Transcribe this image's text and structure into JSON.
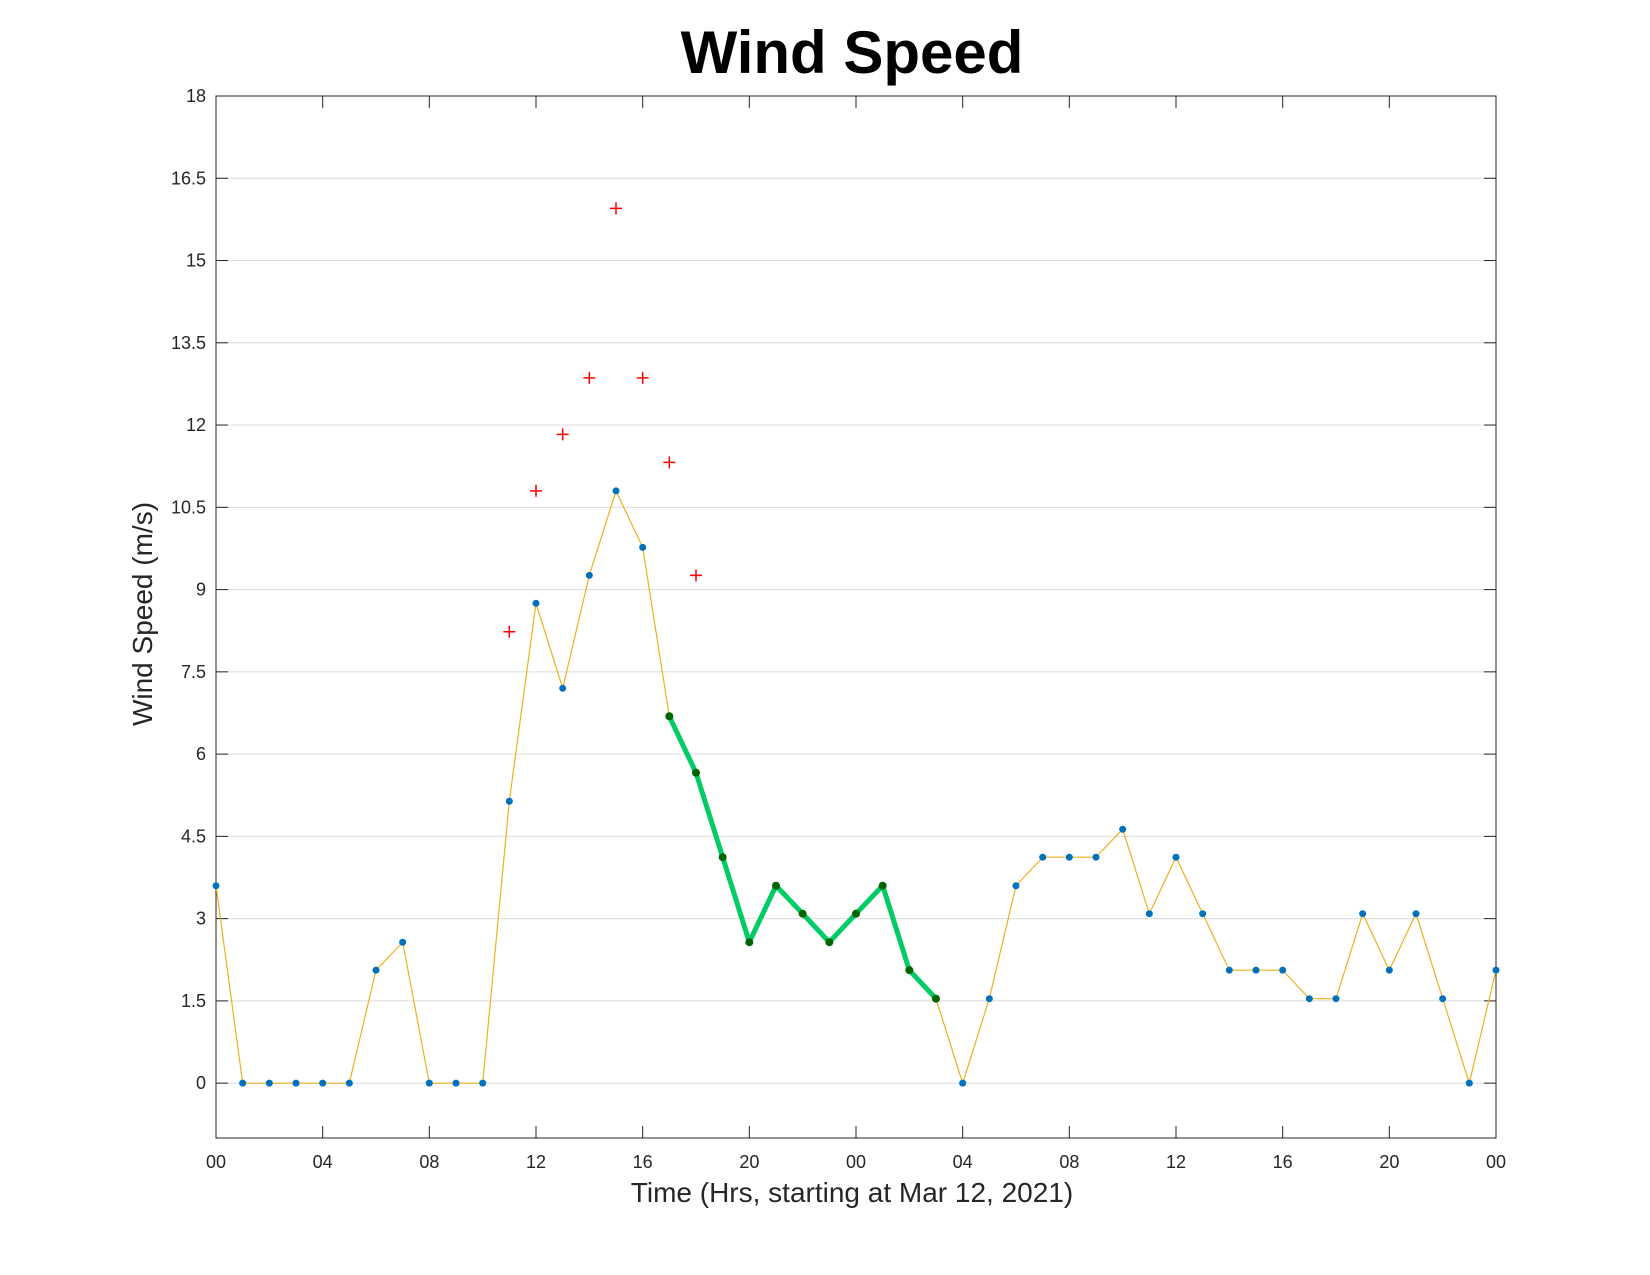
{
  "chart_data": {
    "type": "line",
    "title": "Wind Speed",
    "xlabel": "Time (Hrs, starting at Mar 12, 2021)",
    "ylabel": "Wind Speed (m/s)",
    "x_unit": "hours",
    "xlim": [
      0,
      48
    ],
    "ylim": [
      -1,
      18
    ],
    "yticks": [
      0,
      1.5,
      3,
      4.5,
      6,
      7.5,
      9,
      10.5,
      12,
      13.5,
      15,
      16.5,
      18
    ],
    "xticks": [
      0,
      4,
      8,
      12,
      16,
      20,
      24,
      28,
      32,
      36,
      40,
      44,
      48
    ],
    "xtick_labels": [
      "00",
      "04",
      "08",
      "12",
      "16",
      "20",
      "00",
      "04",
      "08",
      "12",
      "16",
      "20",
      "00"
    ],
    "grid": "horizontal",
    "colors": {
      "series_line": "#edb120",
      "series_marker": "#0072bd",
      "highlight_line": "#00cc66",
      "highlight_marker": "#006400",
      "gust_marker": "#ff0000"
    },
    "series": [
      {
        "marker": "dot",
        "x": [
          0,
          1,
          2,
          3,
          4,
          5,
          6,
          7,
          8,
          9,
          10,
          11,
          12,
          13,
          14,
          15,
          16,
          17,
          18,
          19,
          20,
          21,
          22,
          23,
          24,
          25,
          26,
          27,
          28,
          29,
          30,
          31,
          32,
          33,
          34,
          35,
          36,
          37,
          38,
          39,
          40,
          41,
          42,
          43,
          44,
          45,
          46,
          47,
          48
        ],
        "values": [
          3.6,
          0,
          0,
          0,
          0,
          0,
          2.06,
          2.57,
          0,
          0,
          0,
          5.14,
          8.75,
          7.2,
          9.26,
          10.8,
          9.77,
          6.69,
          5.66,
          4.12,
          2.57,
          3.6,
          3.09,
          2.57,
          3.09,
          3.6,
          2.06,
          1.54,
          0,
          1.54,
          3.6,
          4.12,
          4.12,
          4.12,
          4.63,
          3.09,
          4.12,
          3.09,
          2.06,
          2.06,
          2.06,
          1.54,
          1.54,
          3.09,
          2.06,
          3.09,
          1.54,
          0,
          2.06
        ]
      },
      {
        "marker": "dot",
        "style": "bold",
        "x": [
          17,
          18,
          19,
          20,
          21,
          22,
          23,
          24,
          25,
          26,
          27
        ],
        "values": [
          6.69,
          5.66,
          4.12,
          2.57,
          3.6,
          3.09,
          2.57,
          3.09,
          3.6,
          2.06,
          1.54
        ]
      },
      {
        "marker": "plus",
        "x": [
          11,
          12,
          13,
          14,
          15,
          16,
          17,
          18
        ],
        "values": [
          8.23,
          10.8,
          11.83,
          12.86,
          15.95,
          12.86,
          11.32,
          9.26
        ]
      }
    ]
  }
}
